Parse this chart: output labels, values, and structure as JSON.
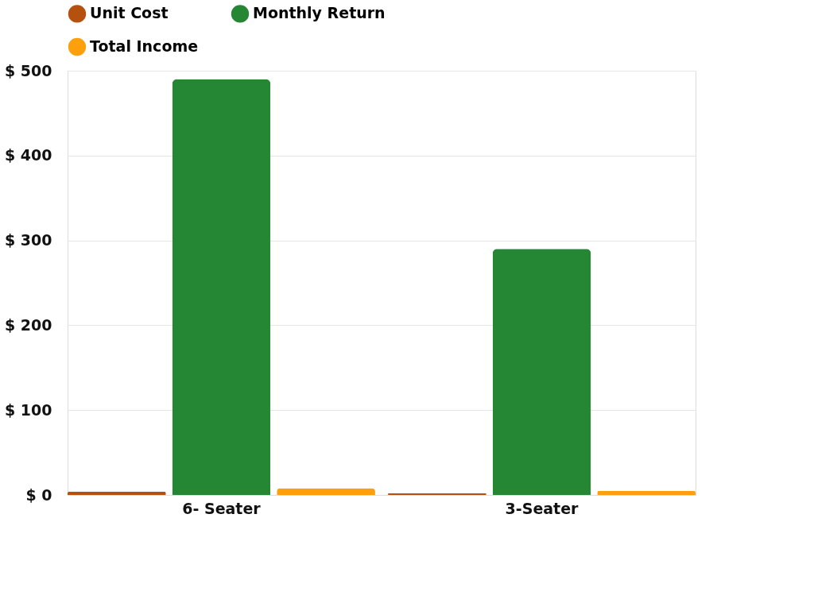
{
  "chart_data": {
    "type": "bar",
    "categories": [
      "6- Seater",
      "3-Seater"
    ],
    "series": [
      {
        "name": "Unit Cost",
        "color": "#b5500f",
        "values": [
          4,
          2
        ]
      },
      {
        "name": "Monthly Return",
        "color": "#258633",
        "values": [
          490,
          290
        ]
      },
      {
        "name": "Total Income",
        "color": "#fe9f0c",
        "values": [
          8,
          5
        ]
      }
    ],
    "ylim": [
      0,
      500
    ],
    "yticks": [
      {
        "value": 0,
        "label": "$ 0"
      },
      {
        "value": 100,
        "label": "$ 100"
      },
      {
        "value": 200,
        "label": "$ 200"
      },
      {
        "value": 300,
        "label": "$ 300"
      },
      {
        "value": 400,
        "label": "$ 400"
      },
      {
        "value": 500,
        "label": "$ 500"
      }
    ],
    "grid": "y",
    "legend": "top"
  }
}
